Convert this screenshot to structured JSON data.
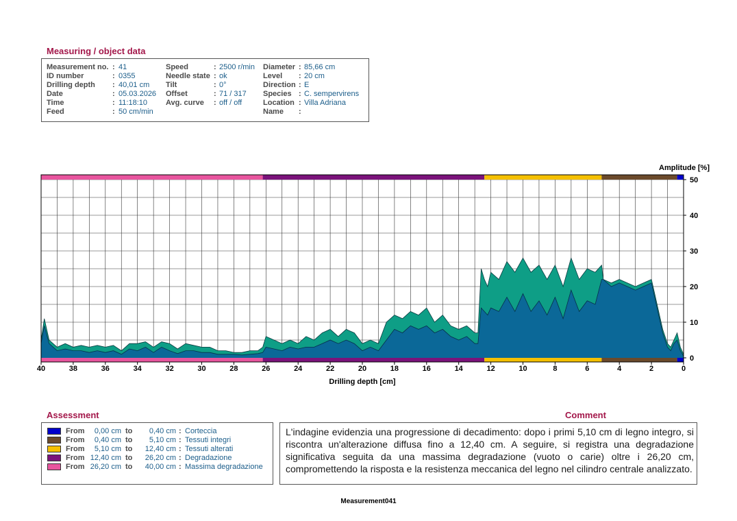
{
  "measuring": {
    "title": "Measuring / object data",
    "columns": [
      [
        {
          "label": "Measurement no.",
          "value": "41"
        },
        {
          "label": "ID number",
          "value": "0355"
        },
        {
          "label": "Drilling depth",
          "value": "40,01 cm"
        },
        {
          "label": "Date",
          "value": "05.03.2026"
        },
        {
          "label": "Time",
          "value": "11:18:10"
        },
        {
          "label": "Feed",
          "value": "50 cm/min"
        }
      ],
      [
        {
          "label": "Speed",
          "value": "2500 r/min"
        },
        {
          "label": "Needle state",
          "value": "ok"
        },
        {
          "label": "Tilt",
          "value": "0°"
        },
        {
          "label": "Offset",
          "value": "71 / 317"
        },
        {
          "label": "Avg. curve",
          "value": "off / off"
        }
      ],
      [
        {
          "label": "Diameter",
          "value": "85,66 cm"
        },
        {
          "label": "Level",
          "value": "20 cm"
        },
        {
          "label": "Direction",
          "value": "E"
        },
        {
          "label": "Species",
          "value": "C. sempervirens"
        },
        {
          "label": "Location",
          "value": "Villa Adriana"
        },
        {
          "label": "Name",
          "value": ""
        }
      ]
    ]
  },
  "assessment": {
    "title": "Assessment",
    "from_label": "From",
    "to_label": "to",
    "rows": [
      {
        "from": "0,00 cm",
        "to": "0,40 cm",
        "name": "Corteccia",
        "color": "#0000cc"
      },
      {
        "from": "0,40 cm",
        "to": "5,10 cm",
        "name": "Tessuti integri",
        "color": "#6b4a2b"
      },
      {
        "from": "5,10 cm",
        "to": "12,40 cm",
        "name": "Tessuti alterati",
        "color": "#f5c000"
      },
      {
        "from": "12,40 cm",
        "to": "26,20 cm",
        "name": "Degradazione",
        "color": "#7b137b"
      },
      {
        "from": "26,20 cm",
        "to": "40,00 cm",
        "name": "Massima degradazione",
        "color": "#e8559e"
      }
    ]
  },
  "comment": {
    "title": "Comment",
    "text": "L'indagine evidenzia una progressione di decadimento: dopo i primi 5,10 cm di legno integro, si riscontra un'alterazione diffusa fino a 12,40 cm. A seguire, si registra una degradazione significativa seguita da una massima degradazione (vuoto o carie) oltre i 26,20 cm, compromettendo la risposta e la resistenza meccanica del legno nel cilindro centrale analizzato."
  },
  "footer": "Measurement041",
  "chart_data": {
    "type": "area",
    "xlabel": "Drilling depth [cm]",
    "ylabel": "Amplitude [%]",
    "xlim": [
      40,
      0
    ],
    "ylim": [
      0,
      50
    ],
    "x_ticks": [
      40,
      38,
      36,
      34,
      32,
      30,
      28,
      26,
      24,
      22,
      20,
      18,
      16,
      14,
      12,
      10,
      8,
      6,
      4,
      2,
      0
    ],
    "y_ticks": [
      0,
      10,
      20,
      30,
      40,
      50
    ],
    "grid": true,
    "colors": {
      "feed_series": "#0e9e86",
      "drill_series": "#0b6898"
    },
    "zone_bands": [
      {
        "from": 40,
        "to": 26.2,
        "color": "#e8559e"
      },
      {
        "from": 26.2,
        "to": 12.4,
        "color": "#7b137b"
      },
      {
        "from": 12.4,
        "to": 5.1,
        "color": "#f5c000"
      },
      {
        "from": 5.1,
        "to": 0.4,
        "color": "#6b4a2b"
      },
      {
        "from": 0.4,
        "to": 0,
        "color": "#0000cc"
      }
    ],
    "series": [
      {
        "x": [
          40,
          39.8,
          39.5,
          39,
          38.5,
          38,
          37.5,
          37,
          36.5,
          36,
          35.5,
          35,
          34.5,
          34,
          33.5,
          33,
          32.5,
          32,
          31.5,
          31,
          30.5,
          30,
          29.5,
          29,
          28.5,
          28,
          27.5,
          27,
          26.5,
          26.2,
          26,
          25.5,
          25,
          24.5,
          24,
          23.5,
          23,
          22.5,
          22,
          21.5,
          21,
          20.5,
          20,
          19.5,
          19,
          18.5,
          18,
          17.5,
          17,
          16.5,
          16,
          15.5,
          15,
          14.5,
          14,
          13.5,
          13,
          12.8,
          12.6,
          12.4,
          12.2,
          12,
          11.5,
          11,
          10.5,
          10,
          9.5,
          9,
          8.5,
          8,
          7.5,
          7,
          6.5,
          6,
          5.5,
          5.1,
          5,
          4.5,
          4,
          3.5,
          3,
          2.5,
          2,
          1.8,
          1.5,
          1.3,
          1,
          0.8,
          0.6,
          0.4,
          0.2,
          0
        ],
        "y": [
          5,
          11,
          5,
          3,
          4,
          3,
          3.5,
          3,
          3.5,
          3,
          3.5,
          2,
          4,
          4,
          4.5,
          3,
          4.5,
          4,
          2.5,
          4,
          3.5,
          3,
          3,
          2,
          2,
          1.5,
          1.5,
          2,
          2,
          3,
          6,
          5,
          4,
          5,
          4,
          6,
          5,
          7,
          8,
          6,
          8,
          7,
          4,
          5,
          4,
          10,
          12,
          11,
          13,
          12,
          14,
          10,
          12,
          9,
          8,
          9,
          7,
          7,
          25,
          22,
          20,
          24,
          22,
          27,
          24,
          28,
          24,
          26,
          22,
          26,
          20,
          28,
          22,
          25,
          24,
          26,
          22,
          21,
          22,
          21,
          20,
          21,
          22,
          18,
          12,
          8,
          4,
          3,
          5,
          7,
          3,
          1
        ],
        "name": ""
      },
      {
        "x": [
          40,
          39.8,
          39.5,
          39,
          38.5,
          38,
          37.5,
          37,
          36.5,
          36,
          35.5,
          35,
          34.5,
          34,
          33.5,
          33,
          32.5,
          32,
          31.5,
          31,
          30.5,
          30,
          29.5,
          29,
          28.5,
          28,
          27.5,
          27,
          26.5,
          26.2,
          26,
          25.5,
          25,
          24.5,
          24,
          23.5,
          23,
          22.5,
          22,
          21.5,
          21,
          20.5,
          20,
          19.5,
          19,
          18.5,
          18,
          17.5,
          17,
          16.5,
          16,
          15.5,
          15,
          14.5,
          14,
          13.5,
          13,
          12.8,
          12.6,
          12.4,
          12.2,
          12,
          11.5,
          11,
          10.5,
          10,
          9.5,
          9,
          8.5,
          8,
          7.5,
          7,
          6.5,
          6,
          5.5,
          5.1,
          5,
          4.5,
          4,
          3.5,
          3,
          2.5,
          2,
          1.8,
          1.5,
          1.3,
          1,
          0.8,
          0.6,
          0.4,
          0.2,
          0
        ],
        "y": [
          4,
          9,
          4,
          2,
          2.5,
          2,
          2,
          1.5,
          2,
          1.5,
          2,
          1,
          2.5,
          2,
          3,
          1.5,
          3,
          2,
          1.2,
          2,
          2,
          1.5,
          1.5,
          1,
          1,
          1,
          0.8,
          1,
          1.2,
          1.5,
          3,
          2.5,
          2,
          3,
          2.5,
          3,
          3,
          4,
          5,
          4,
          5,
          4,
          2,
          3,
          2,
          5,
          8,
          7,
          9,
          8,
          9,
          7,
          8,
          6,
          5,
          6,
          4,
          4,
          14,
          13,
          12,
          14,
          13,
          17,
          13,
          18,
          13,
          16,
          12,
          17,
          11,
          19,
          13,
          16,
          15,
          22,
          22,
          20,
          21,
          20,
          19,
          20,
          21,
          17,
          11,
          7,
          3,
          2,
          4,
          5,
          2,
          0.5
        ],
        "name": ""
      }
    ]
  }
}
